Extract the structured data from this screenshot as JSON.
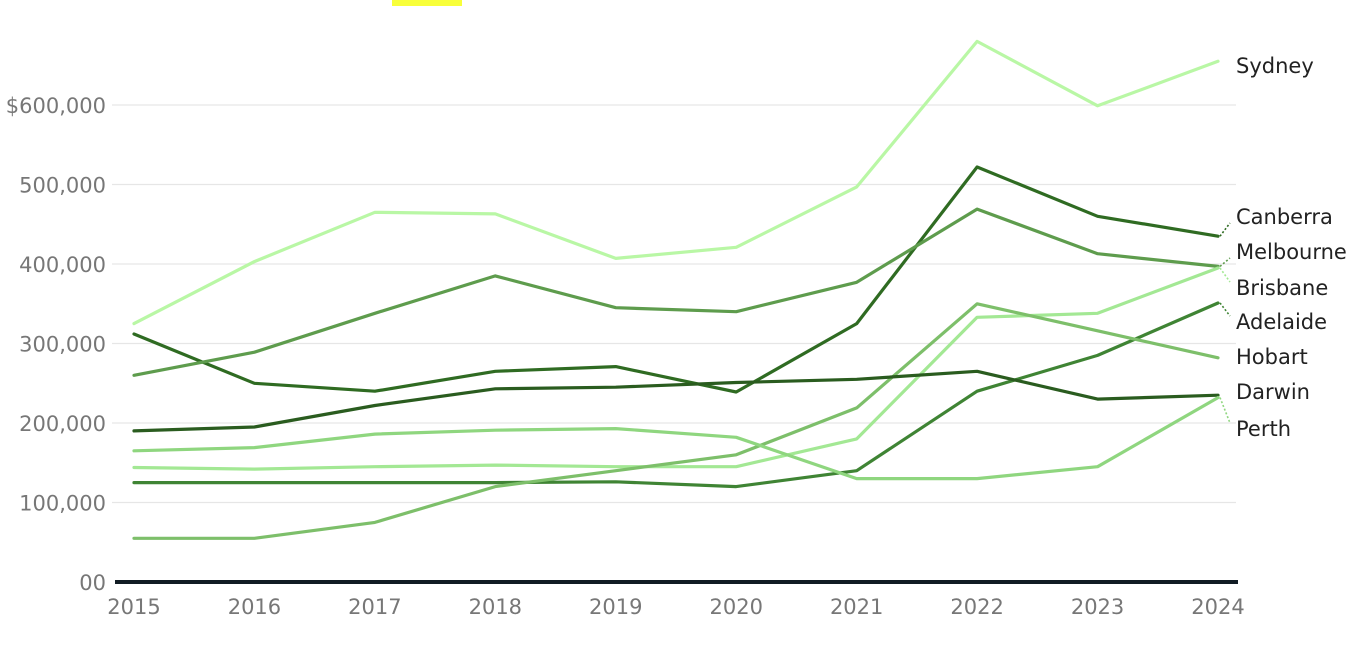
{
  "chart_data": {
    "type": "line",
    "title_text": "",
    "title_highlight_color": "#f8ff3a",
    "x": [
      "2015",
      "2016",
      "2017",
      "2018",
      "2019",
      "2020",
      "2021",
      "2022",
      "2023",
      "2024"
    ],
    "ylim": [
      0,
      700000
    ],
    "y_ticks": [
      {
        "value": 0,
        "label": "00"
      },
      {
        "value": 100000,
        "label": "100,000"
      },
      {
        "value": 200000,
        "label": "200,000"
      },
      {
        "value": 300000,
        "label": "300,000"
      },
      {
        "value": 400000,
        "label": "400,000"
      },
      {
        "value": 500000,
        "label": "500,000"
      },
      {
        "value": 600000,
        "label": "$600,000"
      }
    ],
    "grid": true,
    "legend": "direct labels at right end of each line",
    "series": [
      {
        "name": "Sydney",
        "color": "#b9f7a5",
        "values": [
          325000,
          403000,
          465000,
          463000,
          407000,
          421000,
          497000,
          680000,
          599000,
          655000
        ]
      },
      {
        "name": "Canberra",
        "color": "#2f6b22",
        "values": [
          312000,
          250000,
          240000,
          265000,
          271000,
          239000,
          325000,
          522000,
          460000,
          435000
        ]
      },
      {
        "name": "Melbourne",
        "color": "#5e9c4d",
        "values": [
          260000,
          289000,
          338000,
          385000,
          345000,
          340000,
          377000,
          469000,
          413000,
          397000
        ]
      },
      {
        "name": "Brisbane",
        "color": "#a3e894",
        "values": [
          144000,
          142000,
          145000,
          147000,
          145000,
          145000,
          180000,
          333000,
          338000,
          395000
        ]
      },
      {
        "name": "Adelaide",
        "color": "#3f8434",
        "values": [
          125000,
          125000,
          125000,
          125000,
          126000,
          120000,
          140000,
          240000,
          285000,
          351000
        ]
      },
      {
        "name": "Hobart",
        "color": "#7dbf6a",
        "values": [
          55000,
          55000,
          75000,
          120000,
          140000,
          160000,
          219000,
          350000,
          316000,
          282000
        ]
      },
      {
        "name": "Darwin",
        "color": "#2a5c1f",
        "values": [
          190000,
          195000,
          222000,
          243000,
          245000,
          251000,
          255000,
          265000,
          230000,
          235000
        ]
      },
      {
        "name": "Perth",
        "color": "#8fd67f",
        "values": [
          165000,
          169000,
          186000,
          191000,
          193000,
          182000,
          130000,
          130000,
          145000,
          232000
        ]
      }
    ]
  }
}
